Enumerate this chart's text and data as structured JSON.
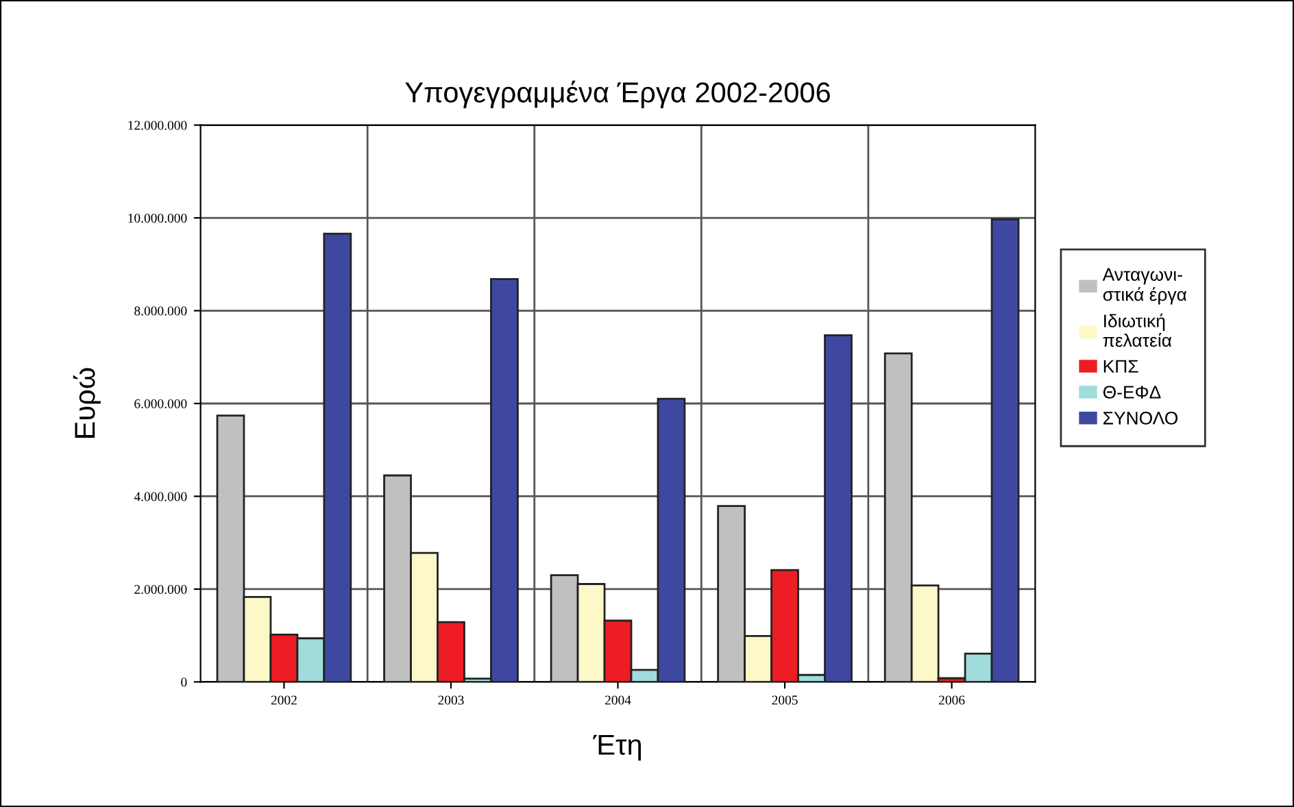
{
  "chart_data": {
    "type": "bar",
    "title": "Υπογεγραμμένα Έργα 2002-2006",
    "xlabel": "Έτη",
    "ylabel": "Ευρώ",
    "categories": [
      "2002",
      "2003",
      "2004",
      "2005",
      "2006"
    ],
    "series": [
      {
        "name": "Ανταγωνι-\nστικά έργα",
        "color": "#c0c0c0",
        "values": [
          5740000,
          4450000,
          2300000,
          3790000,
          7080000
        ]
      },
      {
        "name": "Ιδιωτική\nπελατεία",
        "color": "#fdf8c8",
        "values": [
          1830000,
          2780000,
          2110000,
          990000,
          2080000
        ]
      },
      {
        "name": "ΚΠΣ",
        "color": "#ee1c24",
        "values": [
          1020000,
          1290000,
          1320000,
          2410000,
          80000
        ]
      },
      {
        "name": "Θ-ΕΦΔ",
        "color": "#a0dcdc",
        "values": [
          940000,
          70000,
          260000,
          150000,
          610000
        ]
      },
      {
        "name": "ΣΥΝΟΛΟ",
        "color": "#3f48a0",
        "values": [
          9660000,
          8680000,
          6100000,
          7470000,
          9970000
        ]
      }
    ],
    "ylim": [
      0,
      12000000
    ],
    "yticks": [
      {
        "value": 0,
        "label": "0"
      },
      {
        "value": 2000000,
        "label": "2.000.000"
      },
      {
        "value": 4000000,
        "label": "4.000.000"
      },
      {
        "value": 6000000,
        "label": "6.000.000"
      },
      {
        "value": 8000000,
        "label": "8.000.000"
      },
      {
        "value": 10000000,
        "label": "10.000.000"
      },
      {
        "value": 12000000,
        "label": "12.000.000"
      }
    ],
    "grid": true,
    "legend": "right"
  }
}
